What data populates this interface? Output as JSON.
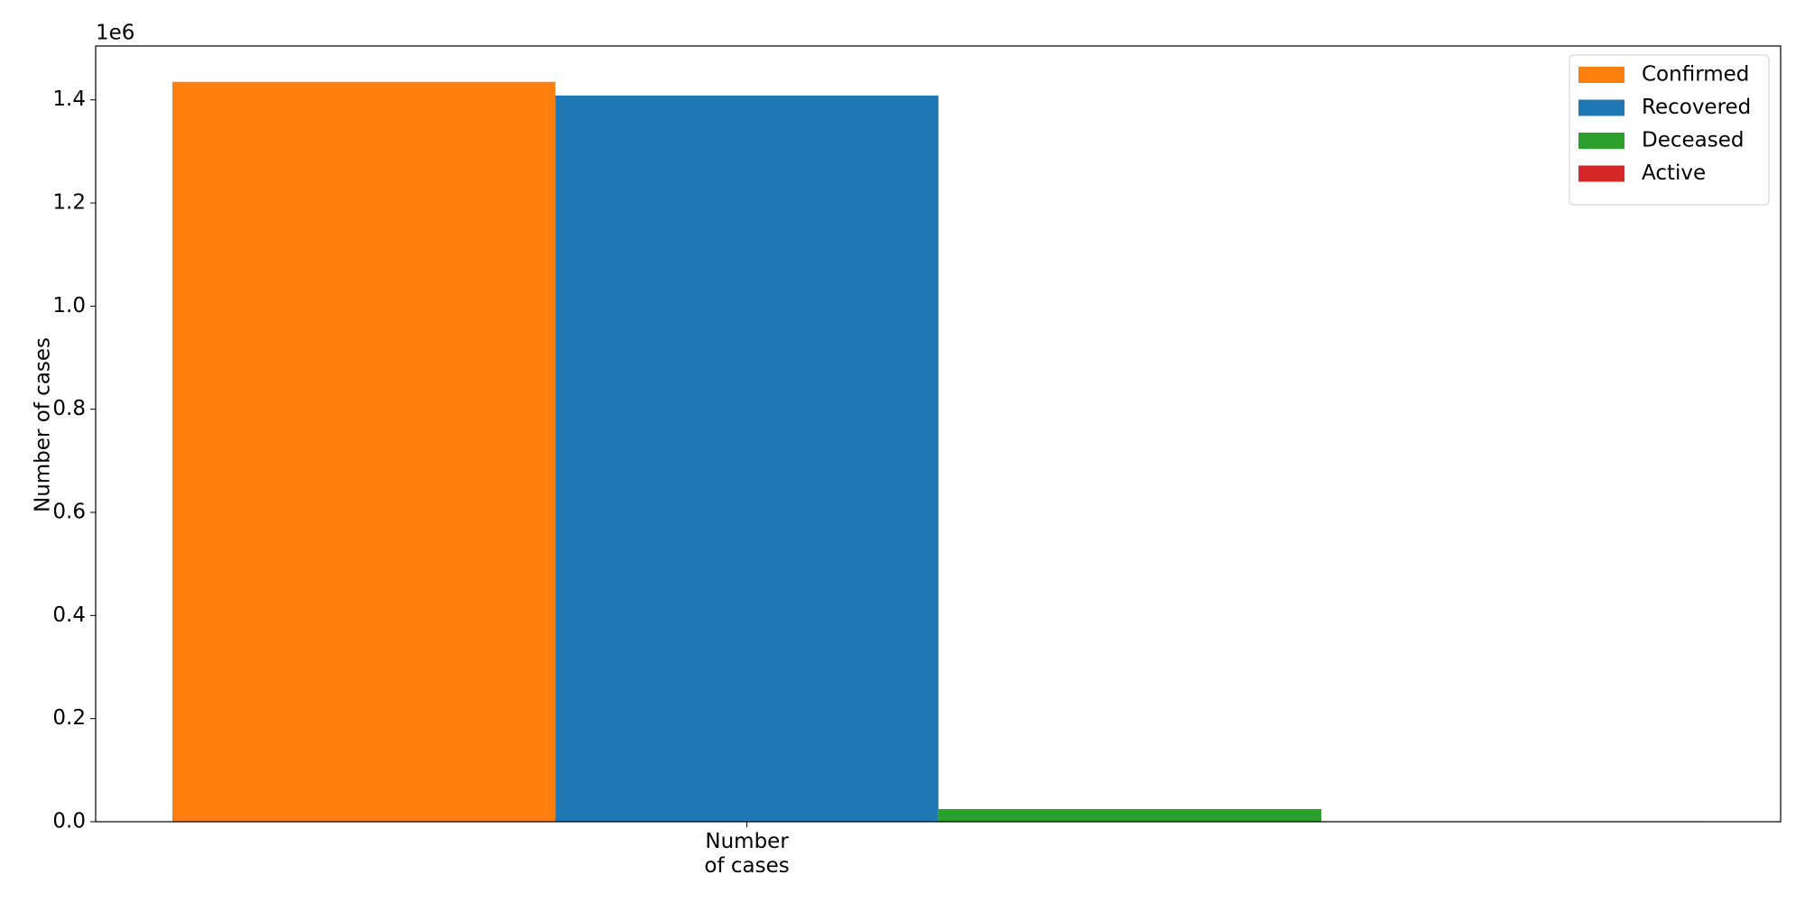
{
  "chart_data": {
    "type": "bar",
    "y_label": "Number of cases",
    "y_offset_label": "1e6",
    "categories": [
      "Number\nof cases"
    ],
    "series": [
      {
        "name": "Confirmed",
        "color": "#ff7f0e",
        "values": [
          1435000
        ]
      },
      {
        "name": "Recovered",
        "color": "#1f77b4",
        "values": [
          1408500
        ]
      },
      {
        "name": "Deceased",
        "color": "#2ca02c",
        "values": [
          24600
        ]
      },
      {
        "name": "Active",
        "color": "#d62728",
        "values": [
          1000
        ]
      }
    ],
    "ylim": [
      0,
      1504500
    ],
    "yticks": [
      {
        "value": 0,
        "label": "0.0"
      },
      {
        "value": 200000,
        "label": "0.2"
      },
      {
        "value": 400000,
        "label": "0.4"
      },
      {
        "value": 600000,
        "label": "0.6"
      },
      {
        "value": 800000,
        "label": "0.8"
      },
      {
        "value": 1000000,
        "label": "1.0"
      },
      {
        "value": 1200000,
        "label": "1.2"
      },
      {
        "value": 1400000,
        "label": "1.4"
      }
    ],
    "legend": "upper right"
  }
}
